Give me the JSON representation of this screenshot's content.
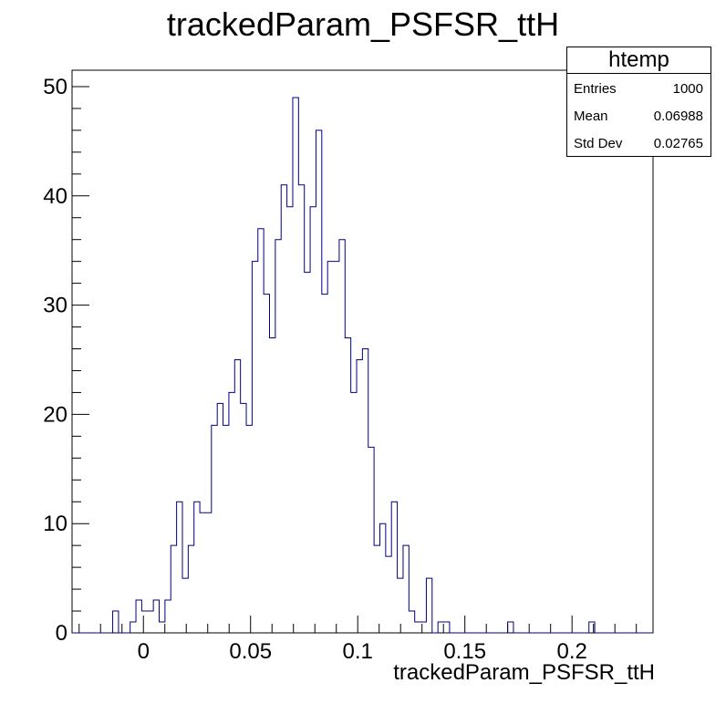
{
  "chart_data": {
    "type": "histogram",
    "title": "trackedParam_PSFSR_ttH",
    "xlabel": "trackedParam_PSFSR_ttH",
    "ylabel": "",
    "xlim": [
      -0.0333,
      0.2378
    ],
    "ylim": [
      0,
      51.5
    ],
    "bin_width": 0.00271,
    "x_ticks": [
      0,
      0.05,
      0.1,
      0.15,
      0.2
    ],
    "x_tick_labels": [
      "0",
      "0.05",
      "0.1",
      "0.15",
      "0.2"
    ],
    "y_ticks": [
      0,
      10,
      20,
      30,
      40,
      50
    ],
    "y_tick_labels": [
      "0",
      "10",
      "20",
      "30",
      "40",
      "50"
    ],
    "line_color": "#000080",
    "counts": [
      0,
      0,
      0,
      0,
      0,
      0,
      0,
      2,
      0,
      0,
      1,
      3,
      2,
      2,
      3,
      1,
      3,
      8,
      12,
      5,
      8,
      12,
      11,
      11,
      19,
      21,
      19,
      22,
      25,
      21,
      19,
      34,
      37,
      31,
      27,
      36,
      41,
      39,
      49,
      41,
      33,
      39,
      46,
      31,
      34,
      34,
      36,
      27,
      22,
      25,
      26,
      17,
      8,
      10,
      7,
      12,
      5,
      8,
      2,
      1,
      1,
      5,
      0,
      1,
      1,
      0,
      0,
      0,
      0,
      0,
      0,
      0,
      0,
      0,
      0,
      1,
      0,
      0,
      0,
      0,
      0,
      0,
      0,
      0,
      0,
      0,
      0,
      0,
      0,
      1,
      0,
      0,
      0,
      0,
      0,
      0,
      0,
      0,
      0,
      0
    ]
  },
  "stats": {
    "name": "htemp",
    "rows": [
      {
        "label": "Entries",
        "value": "1000"
      },
      {
        "label": "Mean",
        "value": "0.06988"
      },
      {
        "label": "Std Dev",
        "value": "0.02765"
      }
    ]
  }
}
